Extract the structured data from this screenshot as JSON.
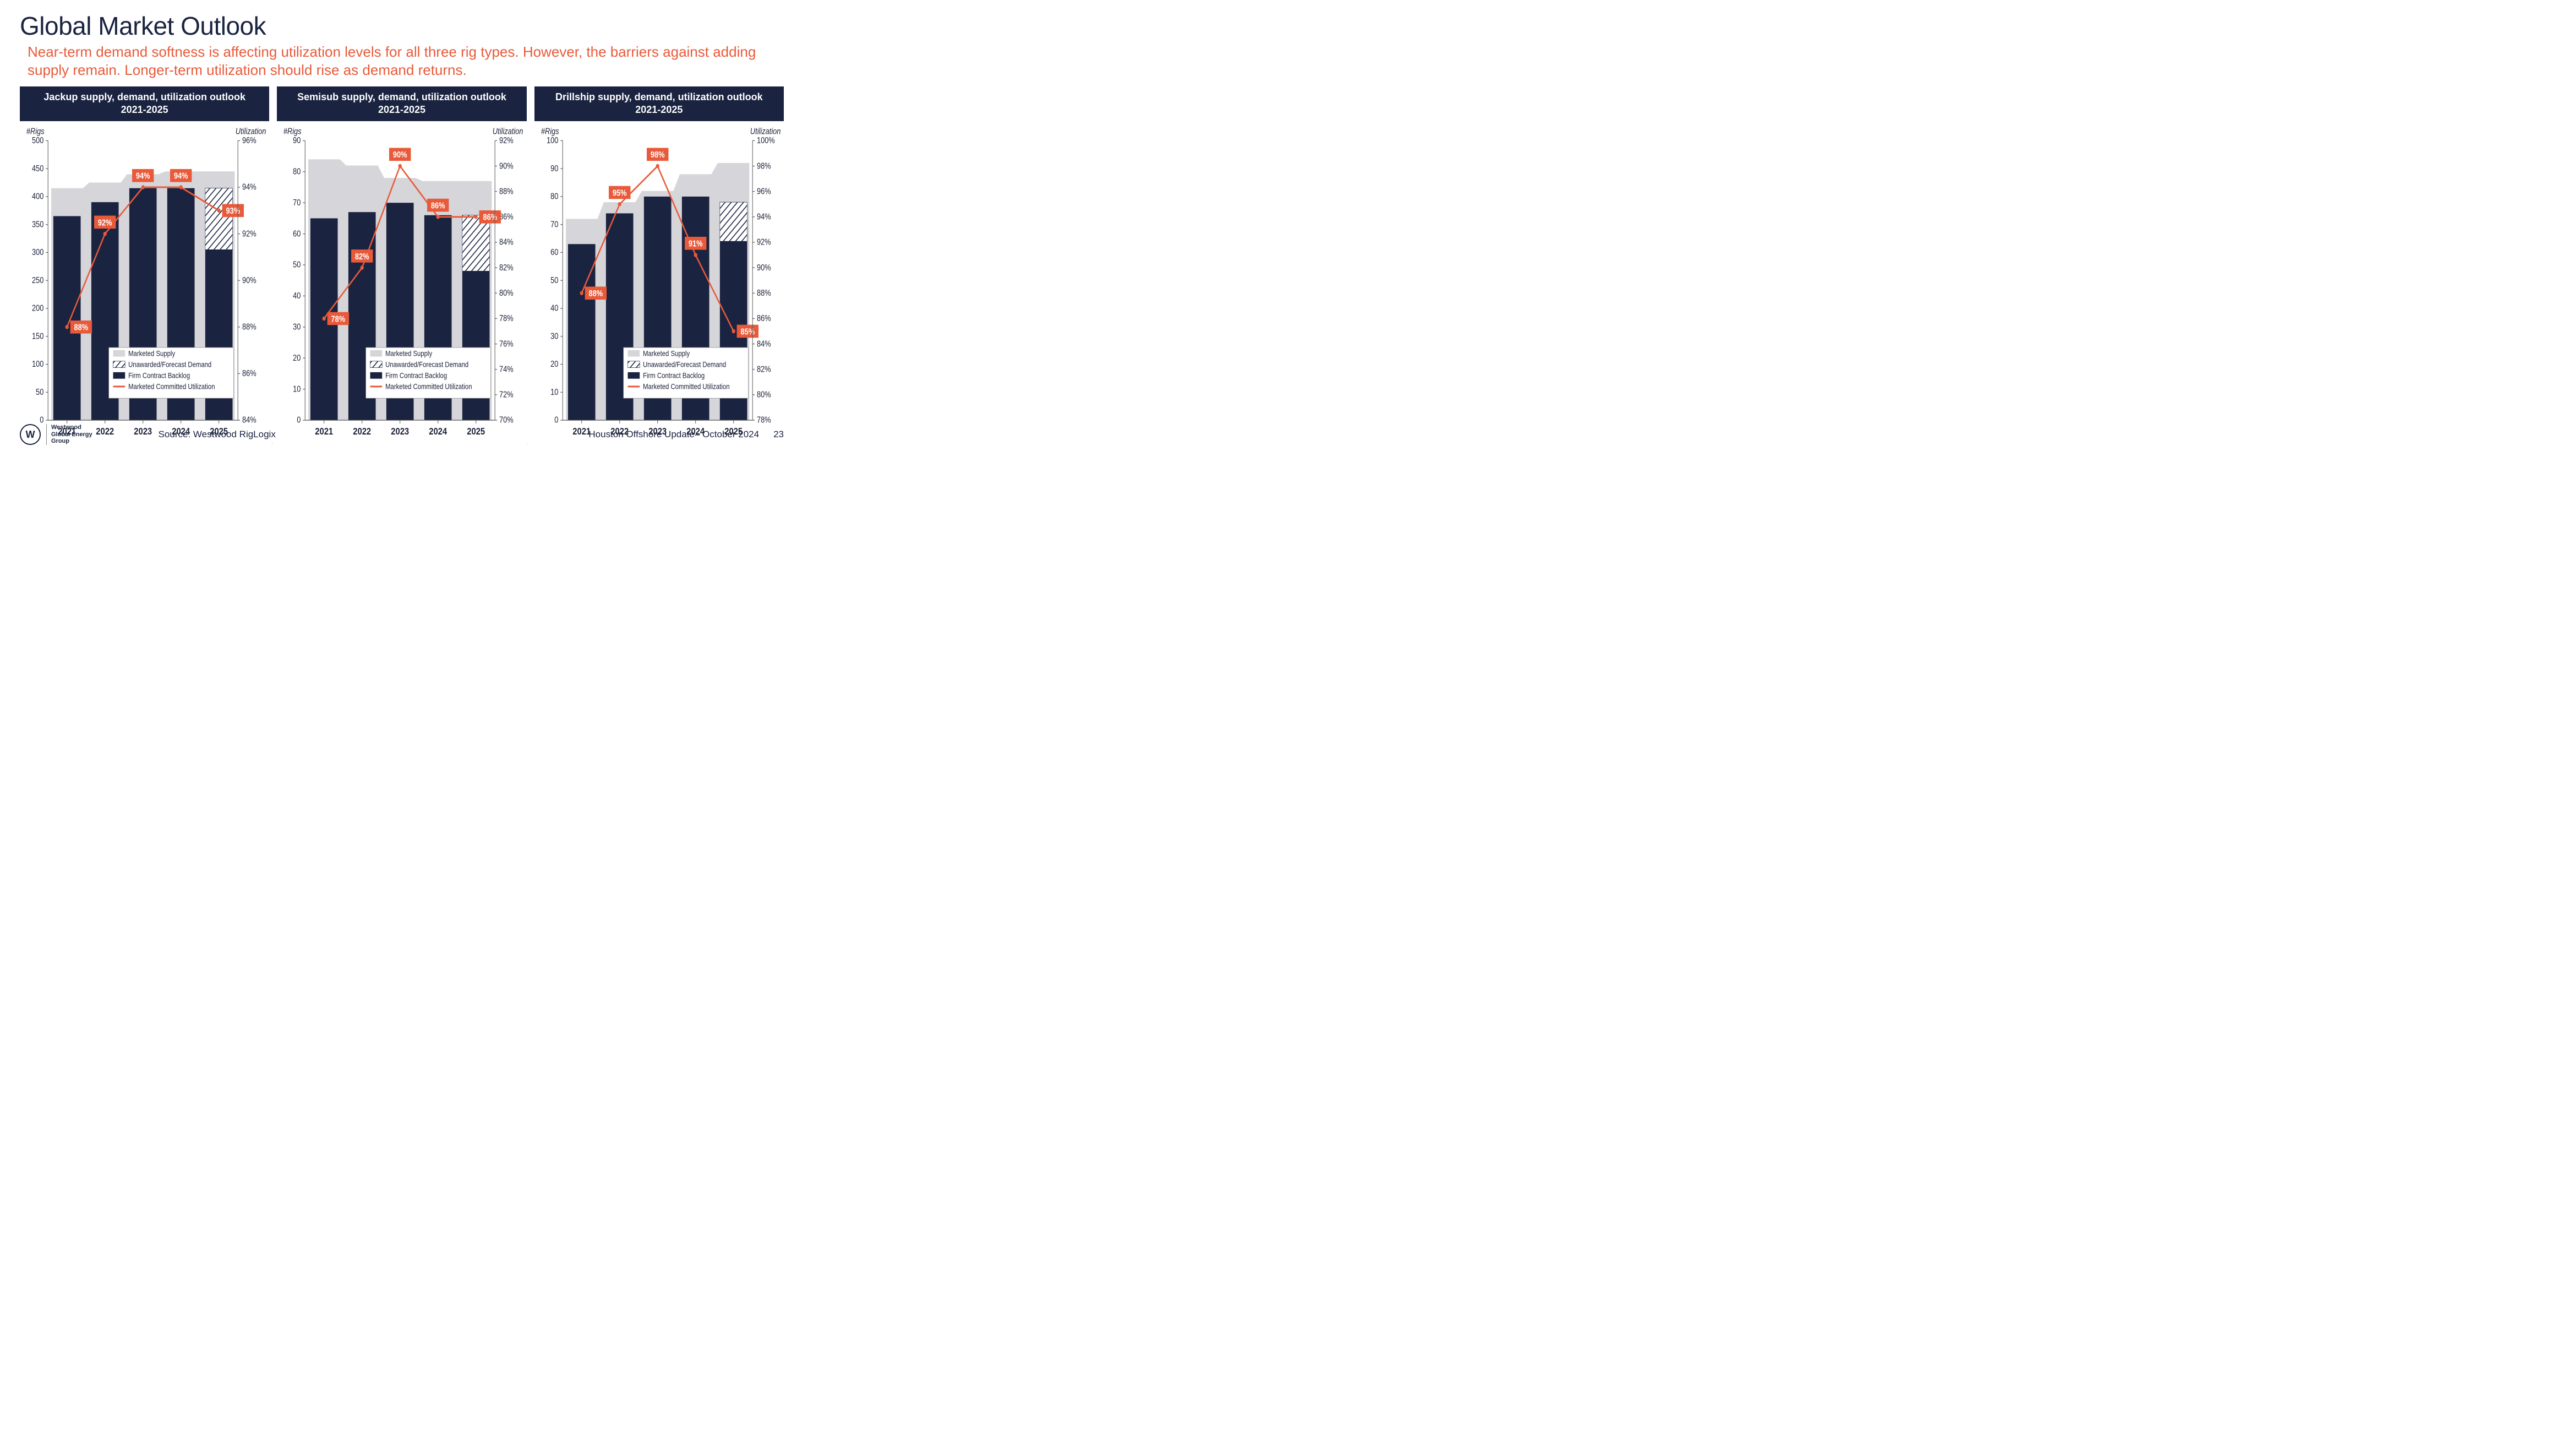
{
  "title": "Global Market Outlook",
  "subtitle": "Near-term demand softness is affecting utilization levels for all three rig types. However, the barriers against adding supply remain. Longer-term utilization should rise as demand returns.",
  "colors": {
    "dark_navy": "#1a2340",
    "accent_orange": "#e85a3a",
    "light_grey": "#d6d6da",
    "axis_text": "#1a1f36",
    "white": "#ffffff",
    "hatch": "#1a2340"
  },
  "legend_items": [
    {
      "label": "Marketed Supply",
      "type": "area",
      "color": "#d6d6da"
    },
    {
      "label": "Unawarded/Forecast Demand",
      "type": "hatch",
      "color": "#1a2340"
    },
    {
      "label": "Firm Contract Backlog",
      "type": "bar",
      "color": "#1a2340"
    },
    {
      "label": "Marketed Committed Utilization",
      "type": "line",
      "color": "#e85a3a"
    }
  ],
  "axis_labels": {
    "left": "#Rigs",
    "right": "Utilization"
  },
  "charts": [
    {
      "name": "jackup",
      "title": "Jackup supply, demand, utilization outlook\n2021-2025",
      "categories": [
        "2021",
        "2022",
        "2023",
        "2024",
        "2025"
      ],
      "left_axis": {
        "min": 0,
        "max": 500,
        "step": 50
      },
      "right_axis": {
        "min": 84,
        "max": 96,
        "step": 2
      },
      "marketed_supply": [
        415,
        425,
        440,
        445,
        445
      ],
      "firm_backlog": [
        365,
        390,
        415,
        415,
        305
      ],
      "forecast_demand": [
        365,
        390,
        415,
        415,
        415
      ],
      "utilization": [
        88,
        92,
        94,
        94,
        93
      ],
      "util_labels": [
        "88%",
        "92%",
        "94%",
        "94%",
        "93%"
      ]
    },
    {
      "name": "semisub",
      "title": "Semisub supply, demand, utilization outlook\n2021-2025",
      "categories": [
        "2021",
        "2022",
        "2023",
        "2024",
        "2025"
      ],
      "left_axis": {
        "min": 0,
        "max": 90,
        "step": 10
      },
      "right_axis": {
        "min": 70,
        "max": 92,
        "step": 2
      },
      "marketed_supply": [
        84,
        82,
        78,
        77,
        77
      ],
      "firm_backlog": [
        65,
        67,
        70,
        66,
        48
      ],
      "forecast_demand": [
        65,
        67,
        70,
        66,
        66
      ],
      "utilization": [
        78,
        82,
        90,
        86,
        86
      ],
      "util_labels": [
        "78%",
        "82%",
        "90%",
        "86%",
        "86%"
      ]
    },
    {
      "name": "drillship",
      "title": "Drillship supply, demand, utilization outlook\n2021-2025",
      "categories": [
        "2021",
        "2022",
        "2023",
        "2024",
        "2025"
      ],
      "left_axis": {
        "min": 0,
        "max": 100,
        "step": 10
      },
      "right_axis": {
        "min": 78,
        "max": 100,
        "step": 2
      },
      "marketed_supply": [
        72,
        78,
        82,
        88,
        92
      ],
      "firm_backlog": [
        63,
        74,
        80,
        80,
        64
      ],
      "forecast_demand": [
        63,
        74,
        80,
        80,
        78
      ],
      "utilization": [
        88,
        95,
        98,
        91,
        85
      ],
      "util_labels": [
        "88%",
        "95%",
        "98%",
        "91%",
        "85%"
      ]
    }
  ],
  "footer": {
    "company": "Westwood\nGlobal Energy\nGroup",
    "source": "Source: Westwood RigLogix",
    "event": "Houston Offshore Update– October 2024",
    "page": "23"
  }
}
